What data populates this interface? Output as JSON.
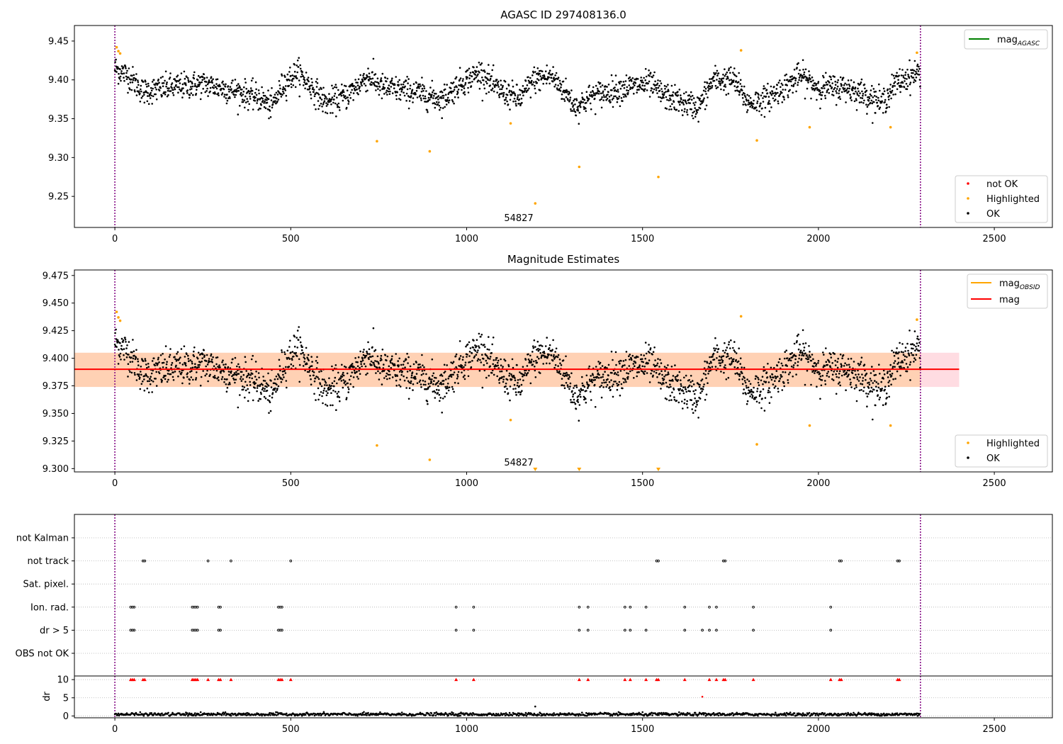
{
  "chart_data": [
    {
      "type": "scatter",
      "title": "AGASC ID 297408136.0",
      "annotation": "54827",
      "xlim": [
        -115,
        2665
      ],
      "ylim": [
        9.21,
        9.47
      ],
      "xticks": [
        0,
        500,
        1000,
        1500,
        2000,
        2500
      ],
      "xtick_labels": [
        "0",
        "500",
        "1000",
        "1500",
        "2000",
        "2500"
      ],
      "yticks": [
        9.25,
        9.3,
        9.35,
        9.4,
        9.45
      ],
      "ytick_labels": [
        "9.25",
        "9.30",
        "9.35",
        "9.40",
        "9.45"
      ],
      "vlines": [
        0,
        2290
      ],
      "legend_top": [
        {
          "name": "mag",
          "sub": "AGASC",
          "color": "#008000",
          "kind": "line"
        }
      ],
      "legend_bottom": [
        {
          "name": "not OK",
          "color": "#ff0000",
          "kind": "dot"
        },
        {
          "name": "Highlighted",
          "color": "#ffa500",
          "kind": "dot"
        },
        {
          "name": "OK",
          "color": "#000000",
          "kind": "dot"
        }
      ],
      "highlighted": {
        "x": [
          5,
          10,
          15,
          745,
          895,
          1125,
          1195,
          1320,
          1545,
          1780,
          1825,
          1975,
          2205,
          2280
        ],
        "y": [
          9.442,
          9.437,
          9.434,
          9.321,
          9.308,
          9.344,
          9.241,
          9.288,
          9.275,
          9.438,
          9.322,
          9.339,
          9.339,
          9.435
        ]
      }
    },
    {
      "type": "scatter",
      "title": "Magnitude Estimates",
      "annotation": "54827",
      "xlim": [
        -115,
        2665
      ],
      "ylim": [
        9.297,
        9.48
      ],
      "xticks": [
        0,
        500,
        1000,
        1500,
        2000,
        2500
      ],
      "xtick_labels": [
        "0",
        "500",
        "1000",
        "1500",
        "2000",
        "2500"
      ],
      "yticks": [
        9.3,
        9.325,
        9.35,
        9.375,
        9.4,
        9.425,
        9.45,
        9.475
      ],
      "ytick_labels": [
        "9.300",
        "9.325",
        "9.350",
        "9.375",
        "9.400",
        "9.425",
        "9.450",
        "9.475"
      ],
      "vlines": [
        0,
        2290
      ],
      "mag_line": 9.39,
      "mag_band": [
        9.374,
        9.405
      ],
      "mag_band_xrange": [
        -115,
        2400
      ],
      "obs_band_xrange": [
        -115,
        2290
      ],
      "legend_top": [
        {
          "name": "mag",
          "sub": "OBSID",
          "color": "#ffa500",
          "kind": "line"
        },
        {
          "name": "mag",
          "sub": "",
          "color": "#ff0000",
          "kind": "line"
        }
      ],
      "legend_bottom": [
        {
          "name": "Highlighted",
          "color": "#ffa500",
          "kind": "dot"
        },
        {
          "name": "OK",
          "color": "#000000",
          "kind": "dot"
        }
      ],
      "highlighted": {
        "x": [
          5,
          10,
          15,
          745,
          895,
          1125,
          1780,
          1825,
          1975,
          2205,
          2280
        ],
        "y": [
          9.442,
          9.437,
          9.434,
          9.321,
          9.308,
          9.344,
          9.438,
          9.322,
          9.339,
          9.339,
          9.435
        ]
      },
      "clipped_markers_x": [
        1195,
        1320,
        1545
      ]
    },
    {
      "type": "scatter",
      "title": "",
      "xlim": [
        -115,
        2665
      ],
      "categories": [
        "not Kalman",
        "not track",
        "Sat. pixel.",
        "Ion. rad.",
        "dr > 5",
        "OBS not OK"
      ],
      "xticks": [
        0,
        500,
        1000,
        1500,
        2000,
        2500
      ],
      "xtick_labels": [
        "0",
        "500",
        "1000",
        "1500",
        "2000",
        "2500"
      ],
      "vlines": [
        0,
        2290
      ],
      "flags": {
        "not track": [
          80,
          85,
          265,
          330,
          500,
          1540,
          1545,
          1730,
          1735,
          2060,
          2065,
          2225,
          2230
        ],
        "Ion. rad.": [
          45,
          50,
          55,
          220,
          225,
          230,
          235,
          295,
          300,
          465,
          470,
          475,
          970,
          1020,
          1320,
          1345,
          1450,
          1465,
          1510,
          1620,
          1690,
          1710,
          1815,
          2035
        ],
        "dr > 5": [
          45,
          50,
          55,
          220,
          225,
          230,
          235,
          295,
          300,
          465,
          470,
          475,
          970,
          1020,
          1320,
          1345,
          1450,
          1465,
          1510,
          1620,
          1670,
          1690,
          1710,
          1815,
          2035
        ]
      },
      "dr": {
        "ylabel": "dr",
        "ylim": [
          -0.5,
          11
        ],
        "yticks": [
          0,
          5,
          10
        ],
        "ytick_labels": [
          "0",
          "5",
          "10"
        ],
        "clipped_x": [
          45,
          50,
          55,
          80,
          85,
          220,
          225,
          230,
          235,
          265,
          295,
          300,
          330,
          465,
          470,
          475,
          500,
          970,
          1020,
          1320,
          1345,
          1450,
          1465,
          1510,
          1540,
          1545,
          1620,
          1690,
          1710,
          1730,
          1735,
          1815,
          2035,
          2060,
          2065,
          2225,
          2230
        ],
        "outliers": {
          "x": [
            1670,
            1195
          ],
          "y": [
            5.3,
            2.6
          ]
        }
      }
    }
  ]
}
